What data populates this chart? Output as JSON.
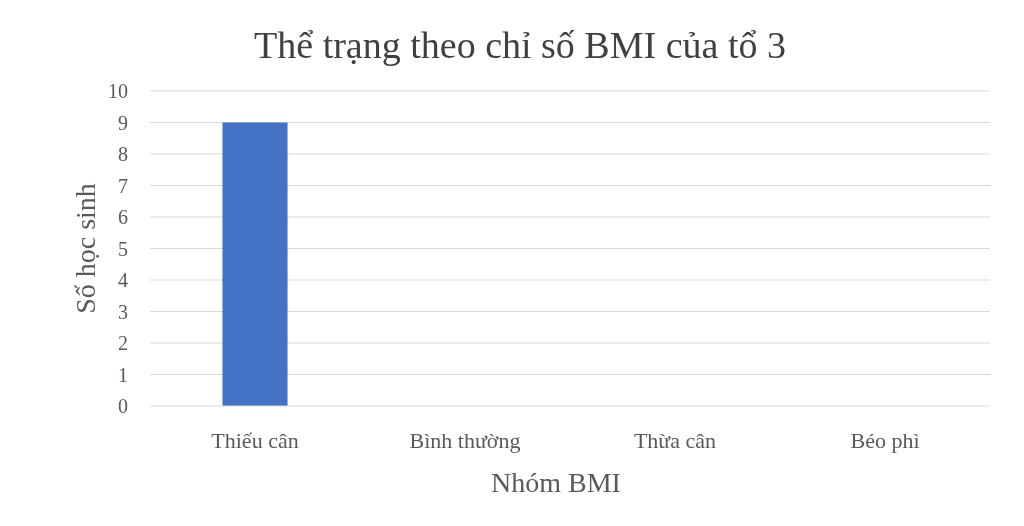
{
  "chart_data": {
    "type": "bar",
    "title": "Thể trạng theo chỉ số BMI của tổ 3",
    "xlabel": "Nhóm BMI",
    "ylabel": "Số học sinh",
    "categories": [
      "Thiếu cân",
      "Bình thường",
      "Thừa cân",
      "Béo phì"
    ],
    "values": [
      9,
      0,
      0,
      0
    ],
    "color": "#4472c4",
    "ylim": [
      0,
      10
    ],
    "yticks": [
      0,
      1,
      2,
      3,
      4,
      5,
      6,
      7,
      8,
      9,
      10
    ],
    "grid": "y"
  }
}
